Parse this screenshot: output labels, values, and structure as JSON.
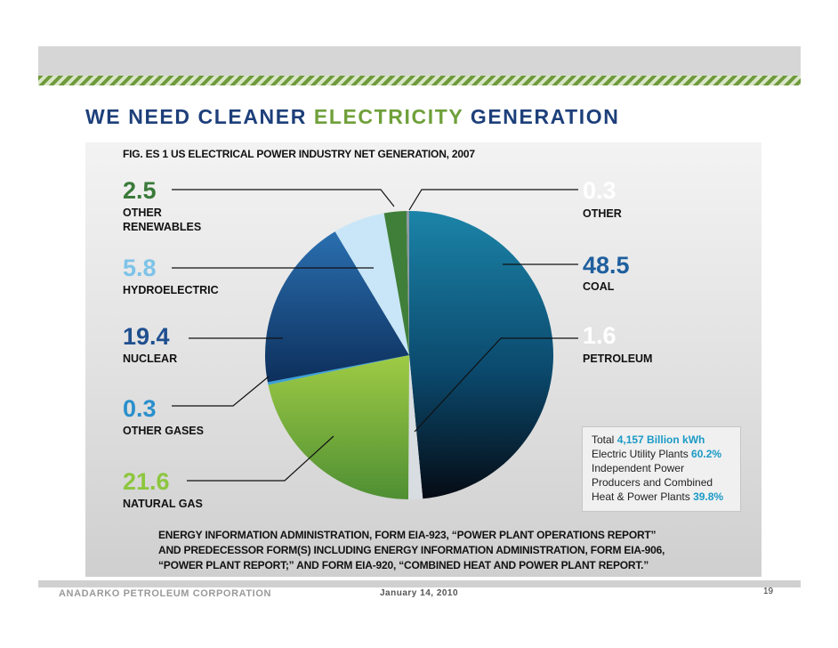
{
  "slide": {
    "title_part1": "WE NEED CLEANER ",
    "title_accent": "ELECTRICITY",
    "title_part2": " GENERATION",
    "footer_company": "ANADARKO PETROLEUM CORPORATION",
    "footer_date": "January 14, 2010",
    "page_number": "19"
  },
  "infobox": {
    "total_label": "Total ",
    "total_value": "4,157 Billion kWh",
    "utility_label": "Electric Utility Plants ",
    "utility_value": "60.2%",
    "ipp_line1": "Independent Power",
    "ipp_line2": "Producers and Combined",
    "ipp_line3": "Heat & Power Plants ",
    "ipp_value": "39.8%"
  },
  "source": {
    "line1": "ENERGY INFORMATION ADMINISTRATION, FORM EIA-923, “POWER PLANT OPERATIONS REPORT”",
    "line2": "AND PREDECESSOR FORM(S) INCLUDING ENERGY INFORMATION ADMINISTRATION, FORM EIA-906,",
    "line3": "“POWER PLANT REPORT;” AND FORM EIA-920, “COMBINED HEAT AND POWER PLANT REPORT.”"
  },
  "colors": {
    "title_blue": "#1d3f7a",
    "accent_green": "#6fa03a",
    "coal": "#0e5a82",
    "petroleum": "#d8dde2",
    "natural_gas": "#7fb23d",
    "other_gases": "#3aa0d8",
    "nuclear": "#1f5f9e",
    "hydroelectric": "#c8e6f7",
    "other_renewables": "#3f7f3a",
    "other": "#8f9aa3"
  },
  "chart_data": {
    "type": "pie",
    "title": "FIG. ES 1 US ELECTRICAL POWER INDUSTRY NET GENERATION, 2007",
    "unit": "%",
    "slices": [
      {
        "label": "COAL",
        "display_label": "COAL",
        "value": 48.5,
        "display": "48.5",
        "color": "#0e5a82",
        "label_color": "#1f5f9e"
      },
      {
        "label": "PETROLEUM",
        "display_label": "PETROLEUM",
        "value": 1.6,
        "display": "1.6",
        "color": "#d8dde2",
        "label_color": "#ffffff"
      },
      {
        "label": "NATURAL GAS",
        "display_label": "NATURAL GAS",
        "value": 21.6,
        "display": "21.6",
        "color": "#7fb23d",
        "label_color": "#8dc63f"
      },
      {
        "label": "OTHER GASES",
        "display_label": "OTHER GASES",
        "value": 0.3,
        "display": "0.3",
        "color": "#3aa0d8",
        "label_color": "#2a8fcc"
      },
      {
        "label": "NUCLEAR",
        "display_label": "NUCLEAR",
        "value": 19.4,
        "display": "19.4",
        "color": "#1f5f9e",
        "label_color": "#1f4f8f"
      },
      {
        "label": "HYDROELECTRIC",
        "display_label": "HYDROELECTRIC",
        "value": 5.8,
        "display": "5.8",
        "color": "#c8e6f7",
        "label_color": "#7ec3e8"
      },
      {
        "label": "OTHER RENEWABLES",
        "display_label": "OTHER RENEWABLES",
        "value": 2.5,
        "display": "2.5",
        "color": "#3f7f3a",
        "label_color": "#3a7a3a"
      },
      {
        "label": "OTHER",
        "display_label": "OTHER",
        "value": 0.3,
        "display": "0.3",
        "color": "#8f9aa3",
        "label_color": "#ffffff"
      }
    ]
  }
}
